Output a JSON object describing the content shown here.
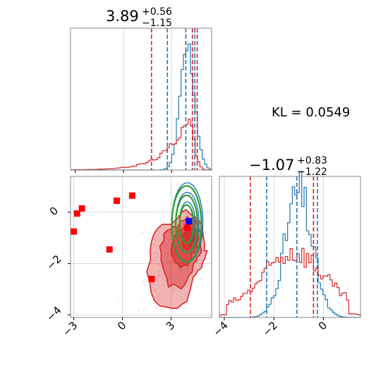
{
  "kl": {
    "text": "KL = 0.0549"
  },
  "colors": {
    "red": "#d62728",
    "blue": "#1f77b4",
    "green": "#2ca02c",
    "marker_red": "#ff0000",
    "marker_blue": "#0000ff"
  },
  "chart_data": [
    {
      "type": "histogram",
      "panel": "marginal-param1",
      "title": {
        "main": "3.89",
        "plus": "+0.56",
        "minus": "−1.15"
      },
      "xlim": [
        -3.3,
        5.5
      ],
      "grid": true,
      "series": [
        {
          "name": "",
          "color": "#1f77b4",
          "median": 3.89,
          "lower": 2.74,
          "upper": 4.45,
          "peak": 4.0,
          "sigma": 0.45
        },
        {
          "name": "",
          "color": "#d62728",
          "median": 4.3,
          "lower": 1.75,
          "upper": 4.6,
          "peak": 4.0,
          "sigma": 0.65
        }
      ]
    },
    {
      "type": "histogram",
      "panel": "marginal-param2",
      "title": {
        "main": "−1.07",
        "plus": "+0.83",
        "minus": "−1.22"
      },
      "xlim": [
        -4.2,
        1.5
      ],
      "xticks": [
        "−4",
        "−2",
        "0"
      ],
      "xtick_values": [
        -4,
        -2,
        0
      ],
      "grid": true,
      "series": [
        {
          "name": "",
          "color": "#1f77b4",
          "median": -1.07,
          "lower": -2.29,
          "upper": -0.24,
          "peak": -1.0,
          "sigma": 0.55
        },
        {
          "name": "",
          "color": "#d62728",
          "median": -0.4,
          "lower": -2.95,
          "upper": -0.4,
          "peak": -1.2,
          "sigma": 1.0
        }
      ]
    },
    {
      "type": "scatter",
      "panel": "joint-param1-param2",
      "xlim": [
        -3.2,
        5.5
      ],
      "ylim": [
        -4.1,
        1.4
      ],
      "xticks": [
        "−3",
        "0",
        "3"
      ],
      "xtick_values": [
        -3,
        0,
        3
      ],
      "yticks": [
        "−4",
        "−2",
        "0"
      ],
      "ytick_values": [
        -4,
        -2,
        0
      ],
      "grid": true,
      "contours": [
        {
          "name": "",
          "color": "#d62728",
          "center": [
            3.7,
            -1.2
          ],
          "note": "filled density, elongated toward lower-left"
        },
        {
          "name": "",
          "color": "#1f77b4",
          "center": [
            4.0,
            -0.4
          ]
        },
        {
          "name": "",
          "color": "#2ca02c",
          "center": [
            4.0,
            -0.4
          ]
        }
      ],
      "red_markers": [
        {
          "x": -3.0,
          "y": -0.75
        },
        {
          "x": -2.8,
          "y": -0.05
        },
        {
          "x": -2.5,
          "y": 0.15
        },
        {
          "x": -0.8,
          "y": -1.45
        },
        {
          "x": -0.35,
          "y": 0.45
        },
        {
          "x": 0.6,
          "y": 0.65
        },
        {
          "x": 1.8,
          "y": -2.6
        },
        {
          "x": 4.0,
          "y": -0.6
        }
      ],
      "blue_marker": {
        "x": 4.1,
        "y": -0.35
      }
    }
  ]
}
